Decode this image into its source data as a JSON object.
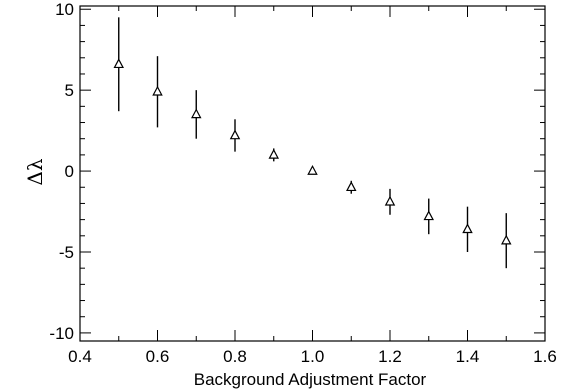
{
  "chart_data": {
    "type": "scatter",
    "title": "",
    "xlabel": "Background Adjustment Factor",
    "ylabel": "Δλ",
    "xlim": [
      0.4,
      1.6
    ],
    "ylim": [
      -10.5,
      10.2
    ],
    "x_ticks": [
      0.4,
      0.6,
      0.8,
      1.0,
      1.2,
      1.4,
      1.6
    ],
    "x_tick_labels": [
      "0.4",
      "0.6",
      "0.8",
      "1.0",
      "1.2",
      "1.4",
      "1.6"
    ],
    "y_ticks": [
      -10,
      -5,
      0,
      5,
      10
    ],
    "y_tick_labels": [
      "-10",
      "-5",
      "0",
      "5",
      "10"
    ],
    "grid": false,
    "marker": "triangle",
    "series": [
      {
        "x": [
          0.5,
          0.6,
          0.7,
          0.8,
          0.9,
          1.0,
          1.1,
          1.2,
          1.3,
          1.4,
          1.5
        ],
        "y": [
          6.6,
          4.9,
          3.5,
          2.2,
          1.0,
          0.0,
          -1.0,
          -1.9,
          -2.8,
          -3.6,
          -4.3
        ],
        "err": [
          2.9,
          2.2,
          1.5,
          1.0,
          0.4,
          0.0,
          0.4,
          0.8,
          1.1,
          1.4,
          1.7
        ]
      }
    ]
  }
}
